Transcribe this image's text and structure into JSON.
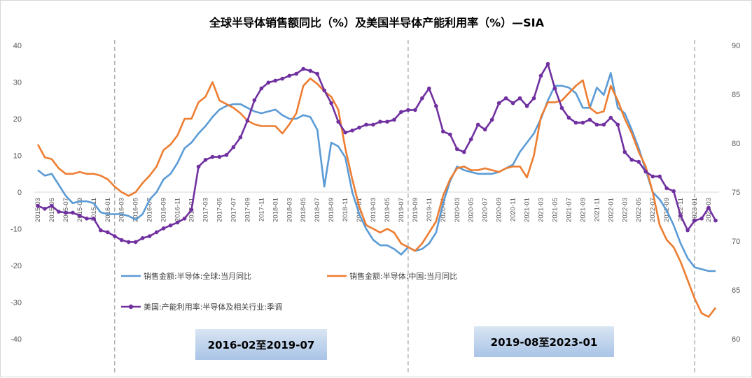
{
  "chart_data": {
    "type": "line",
    "title": "全球半导体销售额同比（%）及美国半导体产能利用率（%）—SIA",
    "x": [
      "2015-03",
      "2015-04",
      "2015-05",
      "2015-06",
      "2015-07",
      "2015-08",
      "2015-09",
      "2015-10",
      "2015-11",
      "2015-12",
      "2016-01",
      "2016-02",
      "2016-03",
      "2016-04",
      "2016-05",
      "2016-06",
      "2016-07",
      "2016-08",
      "2016-09",
      "2016-10",
      "2016-11",
      "2016-12",
      "2017-01",
      "2017-02",
      "2017-03",
      "2017-04",
      "2017-05",
      "2017-06",
      "2017-07",
      "2017-08",
      "2017-09",
      "2017-10",
      "2017-11",
      "2017-12",
      "2018-01",
      "2018-02",
      "2018-03",
      "2018-04",
      "2018-05",
      "2018-06",
      "2018-07",
      "2018-08",
      "2018-09",
      "2018-10",
      "2018-11",
      "2018-12",
      "2019-01",
      "2019-02",
      "2019-03",
      "2019-04",
      "2019-05",
      "2019-06",
      "2019-07",
      "2019-08",
      "2019-09",
      "2019-10",
      "2019-11",
      "2019-12",
      "2020-01",
      "2020-02",
      "2020-03",
      "2020-04",
      "2020-05",
      "2020-06",
      "2020-07",
      "2020-08",
      "2020-09",
      "2020-10",
      "2020-11",
      "2020-12",
      "2021-01",
      "2021-02",
      "2021-03",
      "2021-04",
      "2021-05",
      "2021-06",
      "2021-07",
      "2021-08",
      "2021-09",
      "2021-10",
      "2021-11",
      "2021-12",
      "2022-01",
      "2022-02",
      "2022-03",
      "2022-04",
      "2022-05",
      "2022-06",
      "2022-07",
      "2022-08",
      "2022-09",
      "2022-10",
      "2022-11",
      "2022-12",
      "2023-01",
      "2023-02",
      "2023-03",
      "2023-04"
    ],
    "tick_labels": [
      "2015-03",
      "2015-05",
      "2015-07",
      "2015-09",
      "2015-11",
      "2016-01",
      "2016-03",
      "2016-05",
      "2016-07",
      "2016-09",
      "2016-11",
      "2017-01",
      "2017-03",
      "2017-05",
      "2017-07",
      "2017-09",
      "2017-11",
      "2018-01",
      "2018-03",
      "2018-05",
      "2018-07",
      "2018-09",
      "2018-11",
      "2019-01",
      "2019-03",
      "2019-05",
      "2019-07",
      "2019-09",
      "2019-11",
      "2020-01",
      "2020-03",
      "2020-05",
      "2020-07",
      "2020-09",
      "2020-11",
      "2021-01",
      "2021-03",
      "2021-05",
      "2021-07",
      "2021-09",
      "2021-11",
      "2022-01",
      "2022-03",
      "2022-05",
      "2022-07",
      "2022-09",
      "2022-11",
      "2023-01",
      "2023-03"
    ],
    "y_left": {
      "min": -40,
      "max": 40,
      "ticks": [
        "40",
        "30",
        "20",
        "10",
        "0",
        "-10",
        "-20",
        "-30",
        "-40"
      ]
    },
    "y_right": {
      "min": 60,
      "max": 90,
      "ticks": [
        "90",
        "85",
        "80",
        "75",
        "70",
        "65",
        "60"
      ]
    },
    "grid": false,
    "legend_position": "bottom-left",
    "series": [
      {
        "name": "销售金额:半导体:全球:当月同比",
        "axis": "left",
        "color": "#5b9bd5",
        "values": [
          6,
          4.5,
          5,
          2,
          -1,
          -3,
          -2.5,
          -2.5,
          -3,
          -5.5,
          -6,
          -6,
          -6,
          -6.5,
          -7.5,
          -6,
          -2,
          0,
          3.5,
          5,
          8,
          12,
          13.5,
          16,
          18,
          20.5,
          22.5,
          23.5,
          24,
          24,
          23,
          22,
          21.5,
          22,
          22.5,
          21,
          20,
          20,
          21,
          20.5,
          17,
          1.5,
          13.5,
          12.5,
          9.5,
          0,
          -6,
          -10,
          -13,
          -14.5,
          -14.5,
          -15.5,
          -17,
          -15,
          -16,
          -15.5,
          -14,
          -11,
          -3,
          3,
          7,
          6,
          5.5,
          5,
          5,
          5,
          5.5,
          6.5,
          7.5,
          11,
          13.5,
          16,
          20,
          25,
          29,
          29,
          28.5,
          27,
          23,
          23,
          28.5,
          26.5,
          32.5,
          23,
          21.5,
          17,
          12,
          6,
          0,
          -2,
          -5,
          -9,
          -14,
          -18,
          -20.5,
          -21,
          -21.5,
          -21.5
        ]
      },
      {
        "name": "销售金额:半导体:中国:当月同比",
        "axis": "left",
        "color": "#ed7d31",
        "values": [
          13,
          9.5,
          9,
          6.5,
          5,
          5,
          5.5,
          5,
          5,
          4.5,
          3.5,
          1.5,
          0,
          -1,
          0,
          2.5,
          4.5,
          7,
          11.5,
          13,
          15.5,
          20,
          20,
          24.5,
          26,
          30,
          25,
          24,
          23,
          21.5,
          19.5,
          18.5,
          18,
          18,
          18,
          16,
          18.5,
          21.5,
          29,
          31,
          29.5,
          27.5,
          26,
          22.5,
          12,
          3.5,
          -4,
          -9,
          -10,
          -11,
          -10,
          -11,
          -14,
          -15,
          -16,
          -14,
          -11,
          -8,
          -1,
          3.5,
          6.5,
          7,
          6,
          6,
          6.5,
          6,
          5.5,
          6.5,
          7,
          7,
          4,
          10,
          20.5,
          24.5,
          24.5,
          25,
          27,
          29,
          30.5,
          23,
          21.5,
          22,
          29,
          25,
          20,
          16,
          11,
          7,
          0,
          -9,
          -13,
          -15,
          -19,
          -24,
          -29,
          -33,
          -34,
          -31.5
        ]
      },
      {
        "name": "美国:产能利用率:半导体及相关行业:季调",
        "axis": "right",
        "color": "#7030a0",
        "values": [
          73.6,
          73.3,
          73.6,
          73,
          72.9,
          72.9,
          72.6,
          72.3,
          72.3,
          71.1,
          70.9,
          70.5,
          70.1,
          69.9,
          69.9,
          70.3,
          70.5,
          70.9,
          71.3,
          71.6,
          71.9,
          72.3,
          73.2,
          77.6,
          78.3,
          78.6,
          78.6,
          78.8,
          79.6,
          80.6,
          82.3,
          84.4,
          85.6,
          86.2,
          86.4,
          86.6,
          86.9,
          87.1,
          87.6,
          87.4,
          87.1,
          85.4,
          84.1,
          82.2,
          81.1,
          81.3,
          81.6,
          81.9,
          81.9,
          82.2,
          82.2,
          82.4,
          83.2,
          83.4,
          83.4,
          84.6,
          85.6,
          83.8,
          81.2,
          80.9,
          79.4,
          79.1,
          80.4,
          81.9,
          81.4,
          82.4,
          84.1,
          84.6,
          84.1,
          84.6,
          83.8,
          84.6,
          86.9,
          88.1,
          85.6,
          83.6,
          82.6,
          82.1,
          82.1,
          82.4,
          81.9,
          81.9,
          82.6,
          81.9,
          79.1,
          78.3,
          78.1,
          77.1,
          76.6,
          76.6,
          75.4,
          75.1,
          72.6,
          71.1,
          72.1,
          72.3,
          73.4,
          72.1
        ]
      }
    ],
    "annotations": [
      "2016-02至2019-07",
      "2019-08至2023-01"
    ],
    "reference_lines": [
      "2016-02",
      "2019-08",
      "2023-01"
    ]
  }
}
